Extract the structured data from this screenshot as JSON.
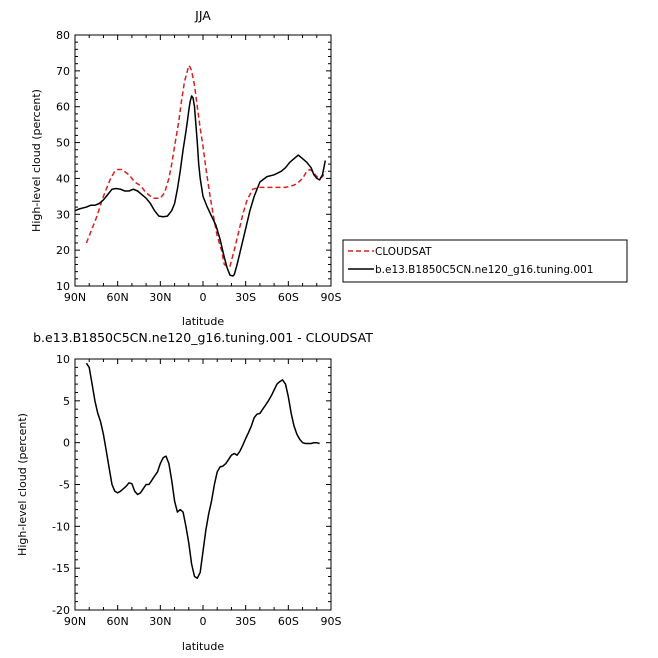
{
  "chart_data": [
    {
      "type": "line",
      "title": "JJA",
      "xlabel": "latitude",
      "ylabel": "High-level cloud (percent)",
      "xlim": [
        90,
        -90
      ],
      "ylim": [
        10,
        80
      ],
      "x_ticks": [
        90,
        60,
        30,
        0,
        -30,
        -60,
        -90
      ],
      "x_tick_labels": [
        "90N",
        "60N",
        "30N",
        "0",
        "30S",
        "60S",
        "90S"
      ],
      "y_ticks": [
        10,
        20,
        30,
        40,
        50,
        60,
        70,
        80
      ],
      "y_tick_labels": [
        "10",
        "20",
        "30",
        "40",
        "50",
        "60",
        "70",
        "80"
      ],
      "legend": {
        "placement": "outside-right",
        "entries": [
          "CLOUDSAT",
          "b.e13.B1850C5CN.ne120_g16.tuning.001"
        ]
      },
      "series": [
        {
          "name": "CLOUDSAT",
          "color": "#d62020",
          "dash": "dashed",
          "x": [
            82,
            75,
            70,
            65,
            62,
            60,
            57,
            52,
            48,
            44,
            40,
            35,
            30,
            27,
            24,
            22,
            20,
            17,
            15,
            13,
            11,
            10,
            9,
            8,
            6,
            4,
            2,
            0,
            -2,
            -5,
            -8,
            -10,
            -13,
            -15,
            -17,
            -19,
            -20,
            -22,
            -25,
            -28,
            -31,
            -35,
            -40,
            -45,
            -50,
            -55,
            -58,
            -60,
            -63,
            -66,
            -70,
            -73,
            -75,
            -77,
            -80,
            -82,
            -84,
            -86
          ],
          "y": [
            22,
            29,
            35,
            40,
            42,
            42.5,
            42.5,
            41,
            39,
            38,
            36,
            34.5,
            34.5,
            36,
            40,
            44,
            49,
            56,
            62,
            67,
            70,
            71.5,
            71,
            70,
            66,
            60,
            54,
            49,
            43,
            35,
            28,
            24,
            20,
            16,
            15.5,
            15.5,
            17,
            20,
            25,
            30,
            34,
            37,
            37.5,
            37.5,
            37.5,
            37.5,
            37.5,
            37.7,
            38,
            38.5,
            40,
            42,
            42.5,
            42,
            40.5,
            40,
            40.5,
            42
          ]
        },
        {
          "name": "b.e13.B1850C5CN.ne120_g16.tuning.001",
          "color": "#000000",
          "dash": "solid",
          "x": [
            90,
            87,
            84,
            82,
            79,
            76,
            73,
            70,
            67,
            64,
            61,
            58,
            55,
            52,
            49,
            46,
            43,
            40,
            37,
            34,
            31,
            28,
            25,
            22,
            20,
            18,
            16,
            14,
            12,
            11,
            10,
            9,
            8,
            7,
            6,
            5,
            4,
            3,
            2,
            0,
            -3,
            -6,
            -9,
            -12,
            -15,
            -17,
            -19,
            -21,
            -22,
            -24,
            -27,
            -30,
            -33,
            -36,
            -40,
            -45,
            -50,
            -55,
            -58,
            -61,
            -64,
            -67,
            -70,
            -73,
            -76,
            -78,
            -80,
            -82,
            -84,
            -86
          ],
          "y": [
            31,
            31.5,
            31.8,
            32,
            32.5,
            32.5,
            33,
            34,
            35.5,
            37,
            37.2,
            37,
            36.5,
            36.5,
            37,
            36.5,
            35.5,
            34.5,
            33,
            31,
            29.5,
            29.3,
            29.5,
            31,
            33,
            37,
            42,
            48,
            53,
            56,
            59,
            61.5,
            63,
            62.5,
            60,
            55,
            50,
            44,
            40,
            35,
            32,
            29.5,
            27,
            23,
            18,
            15,
            13,
            12.8,
            13.2,
            16,
            21,
            26,
            31,
            35,
            39,
            40.5,
            41,
            42,
            43,
            44.5,
            45.5,
            46.5,
            45.5,
            44.5,
            43,
            41,
            40,
            39.6,
            41,
            45
          ]
        }
      ]
    },
    {
      "type": "line",
      "title": "b.e13.B1850C5CN.ne120_g16.tuning.001 - CLOUDSAT",
      "xlabel": "latitude",
      "ylabel": "High-level cloud (percent)",
      "xlim": [
        90,
        -90
      ],
      "ylim": [
        -20,
        10
      ],
      "x_ticks": [
        90,
        60,
        30,
        0,
        -30,
        -60,
        -90
      ],
      "x_tick_labels": [
        "90N",
        "60N",
        "30N",
        "0",
        "30S",
        "60S",
        "90S"
      ],
      "y_ticks": [
        -20,
        -15,
        -10,
        -5,
        0,
        5,
        10
      ],
      "y_tick_labels": [
        "-20",
        "-15",
        "-10",
        "-5",
        "0",
        "5",
        "10"
      ],
      "series": [
        {
          "color": "#000000",
          "dash": "solid",
          "x": [
            82,
            80,
            78,
            76,
            74,
            72,
            70,
            68,
            66,
            64,
            62,
            60,
            58,
            56,
            54,
            52,
            50,
            48,
            46,
            44,
            42,
            40,
            38,
            36,
            34,
            32,
            30,
            28,
            26,
            24,
            22,
            20,
            18,
            16,
            14,
            12,
            10,
            8,
            6,
            4,
            2,
            0,
            -2,
            -4,
            -6,
            -8,
            -10,
            -12,
            -14,
            -16,
            -18,
            -20,
            -22,
            -24,
            -26,
            -28,
            -30,
            -32,
            -34,
            -36,
            -38,
            -40,
            -42,
            -44,
            -46,
            -48,
            -50,
            -52,
            -54,
            -56,
            -58,
            -60,
            -62,
            -64,
            -66,
            -68,
            -70,
            -72,
            -74,
            -76,
            -78,
            -80,
            -82
          ],
          "y": [
            9.5,
            9.0,
            7.0,
            5.0,
            3.5,
            2.5,
            1.0,
            -1.0,
            -3.0,
            -5.0,
            -5.8,
            -6.0,
            -5.8,
            -5.5,
            -5.2,
            -4.8,
            -4.9,
            -5.8,
            -6.2,
            -6.0,
            -5.5,
            -5.0,
            -5.0,
            -4.5,
            -4.0,
            -3.5,
            -2.5,
            -1.8,
            -1.6,
            -2.5,
            -4.5,
            -7.0,
            -8.3,
            -8.0,
            -8.3,
            -10.0,
            -12.0,
            -14.5,
            -16.0,
            -16.2,
            -15.5,
            -13.0,
            -10.5,
            -8.5,
            -7.0,
            -5.0,
            -3.5,
            -2.9,
            -2.8,
            -2.5,
            -2.0,
            -1.5,
            -1.3,
            -1.5,
            -1.0,
            -0.3,
            0.5,
            1.2,
            2.0,
            3.0,
            3.4,
            3.5,
            4.0,
            4.5,
            5.0,
            5.6,
            6.3,
            7.0,
            7.3,
            7.5,
            7.0,
            5.5,
            3.5,
            2.0,
            1.0,
            0.4,
            0.0,
            -0.1,
            -0.1,
            -0.1,
            0.0,
            0.0,
            -0.1
          ]
        }
      ]
    }
  ]
}
